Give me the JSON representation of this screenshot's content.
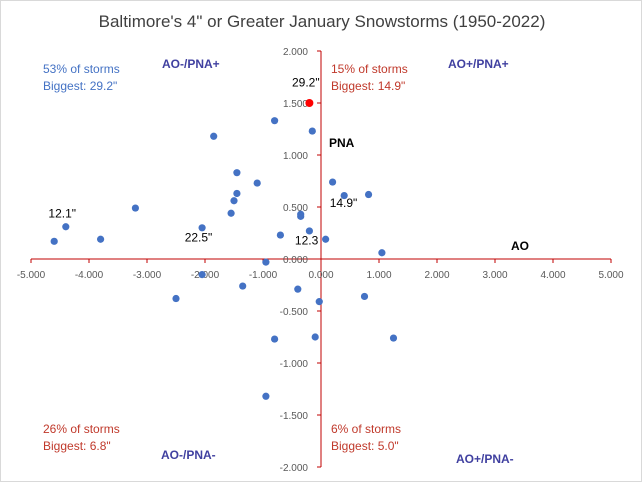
{
  "chart_data": {
    "type": "scatter",
    "title": "Baltimore's 4\" or Greater January Snowstorms (1950-2022)",
    "xlim": [
      -5,
      5
    ],
    "ylim": [
      -2,
      2
    ],
    "x_ticks": [
      "-5.000",
      "-4.000",
      "-3.000",
      "-2.000",
      "-1.000",
      "0.000",
      "1.000",
      "2.000",
      "3.000",
      "4.000",
      "5.000"
    ],
    "y_ticks": [
      "2.000",
      "1.500",
      "1.000",
      "0.500",
      "0.000",
      "-0.500",
      "-1.000",
      "-1.500",
      "-2.000"
    ],
    "axis_name_x": "AO",
    "axis_name_y": "PNA",
    "grid": false,
    "colors": {
      "points": "#4472c4",
      "highlight": "#ff0000",
      "axis": "#c00000",
      "quadrant_label": "#4040a0",
      "annotation": "#c0392b",
      "blue_annotation": "#4472c4"
    },
    "points": [
      {
        "x": -4.6,
        "y": 0.17
      },
      {
        "x": -4.4,
        "y": 0.31
      },
      {
        "x": -3.8,
        "y": 0.19
      },
      {
        "x": -3.2,
        "y": 0.49
      },
      {
        "x": -2.5,
        "y": -0.38
      },
      {
        "x": -2.05,
        "y": -0.15
      },
      {
        "x": -2.05,
        "y": 0.3
      },
      {
        "x": -1.85,
        "y": 1.18
      },
      {
        "x": -1.55,
        "y": 0.44
      },
      {
        "x": -1.5,
        "y": 0.56
      },
      {
        "x": -1.45,
        "y": 0.63
      },
      {
        "x": -1.45,
        "y": 0.83
      },
      {
        "x": -1.35,
        "y": -0.26
      },
      {
        "x": -1.1,
        "y": 0.73
      },
      {
        "x": -0.95,
        "y": -0.03
      },
      {
        "x": -0.95,
        "y": -1.32
      },
      {
        "x": -0.8,
        "y": 1.33
      },
      {
        "x": -0.8,
        "y": -0.77
      },
      {
        "x": -0.7,
        "y": 0.23
      },
      {
        "x": -0.4,
        "y": -0.29
      },
      {
        "x": -0.35,
        "y": 0.41
      },
      {
        "x": -0.35,
        "y": 0.43
      },
      {
        "x": -0.2,
        "y": 0.27
      },
      {
        "x": -0.15,
        "y": 1.23
      },
      {
        "x": -0.1,
        "y": -0.75
      },
      {
        "x": -0.03,
        "y": -0.41
      },
      {
        "x": 0.08,
        "y": 0.19
      },
      {
        "x": 0.2,
        "y": 0.74
      },
      {
        "x": 0.4,
        "y": 0.61
      },
      {
        "x": 0.75,
        "y": -0.36
      },
      {
        "x": 0.82,
        "y": 0.62
      },
      {
        "x": 1.05,
        "y": 0.06
      },
      {
        "x": 1.25,
        "y": -0.76
      }
    ],
    "highlight_point": {
      "x": -0.2,
      "y": 1.5
    },
    "point_labels": [
      {
        "text": "29.2\"",
        "x": -0.5,
        "y": 1.66
      },
      {
        "text": "12.1\"",
        "x": -4.7,
        "y": 0.4
      },
      {
        "text": "22.5\"",
        "x": -2.35,
        "y": 0.17
      },
      {
        "text": "14.9\"",
        "x": 0.15,
        "y": 0.5
      },
      {
        "text": "12.3",
        "x": -0.45,
        "y": 0.14
      }
    ],
    "quadrants": [
      {
        "name": "AO-/PNA+",
        "pct": "53% of storms",
        "biggest": "Biggest: 29.2\"",
        "pct_color": "#4472c4"
      },
      {
        "name": "AO+/PNA+",
        "pct": "15% of storms",
        "biggest": "Biggest: 14.9\"",
        "pct_color": "#c0392b"
      },
      {
        "name": "AO-/PNA-",
        "pct": "26% of storms",
        "biggest": "Biggest: 6.8\"",
        "pct_color": "#c0392b"
      },
      {
        "name": "AO+/PNA-",
        "pct": "6% of storms",
        "biggest": "Biggest: 5.0\"",
        "pct_color": "#c0392b"
      }
    ]
  }
}
